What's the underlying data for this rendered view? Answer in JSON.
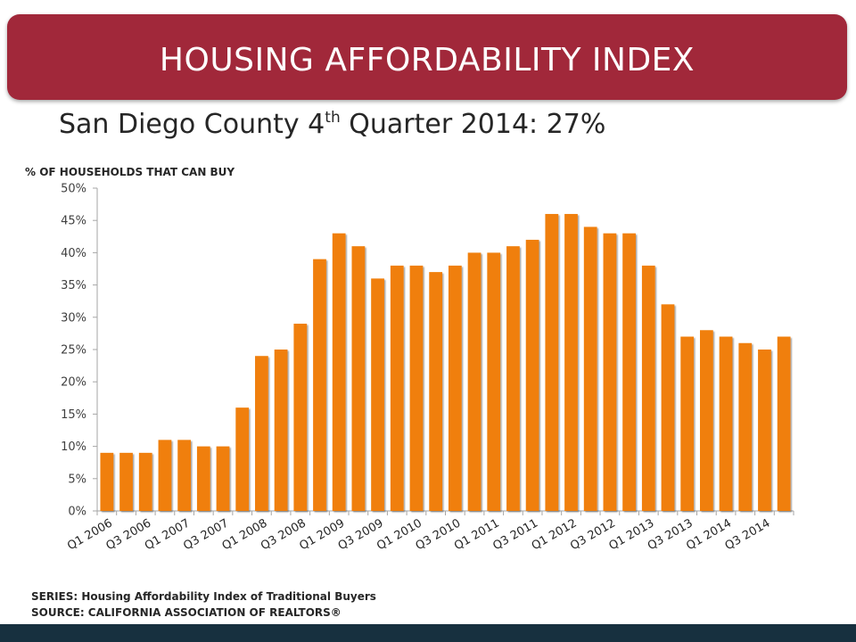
{
  "header": {
    "title": "HOUSING AFFORDABILITY INDEX"
  },
  "subtitle": {
    "prefix": "San Diego County 4",
    "superscript": "th",
    "suffix": " Quarter 2014: 27%"
  },
  "chart_data": {
    "type": "bar",
    "ylabel": "% OF HOUSEHOLDS THAT CAN BUY",
    "ylim": [
      0,
      50
    ],
    "y_ticks": [
      "0%",
      "5%",
      "10%",
      "15%",
      "20%",
      "25%",
      "30%",
      "35%",
      "40%",
      "45%",
      "50%"
    ],
    "y_tick_values": [
      0,
      5,
      10,
      15,
      20,
      25,
      30,
      35,
      40,
      45,
      50
    ],
    "x_tick_labels": [
      "Q1 2006",
      "Q3 2006",
      "Q1 2007",
      "Q3 2007",
      "Q1 2008",
      "Q3 2008",
      "Q1 2009",
      "Q3 2009",
      "Q1 2010",
      "Q3 2010",
      "Q1 2011",
      "Q3 2011",
      "Q1 2012",
      "Q3 2012",
      "Q1 2013",
      "Q3 2013",
      "Q1 2014",
      "Q3 2014"
    ],
    "categories": [
      "Q1 2006",
      "Q2 2006",
      "Q3 2006",
      "Q4 2006",
      "Q1 2007",
      "Q2 2007",
      "Q3 2007",
      "Q4 2007",
      "Q1 2008",
      "Q2 2008",
      "Q3 2008",
      "Q4 2008",
      "Q1 2009",
      "Q2 2009",
      "Q3 2009",
      "Q4 2009",
      "Q1 2010",
      "Q2 2010",
      "Q3 2010",
      "Q4 2010",
      "Q1 2011",
      "Q2 2011",
      "Q3 2011",
      "Q4 2011",
      "Q1 2012",
      "Q2 2012",
      "Q3 2012",
      "Q4 2012",
      "Q1 2013",
      "Q2 2013",
      "Q3 2013",
      "Q4 2013",
      "Q1 2014",
      "Q2 2014",
      "Q3 2014",
      "Q4 2014"
    ],
    "values": [
      9,
      9,
      9,
      11,
      11,
      10,
      10,
      16,
      24,
      25,
      29,
      39,
      43,
      41,
      36,
      38,
      38,
      37,
      38,
      40,
      40,
      41,
      42,
      46,
      46,
      44,
      43,
      43,
      38,
      32,
      27,
      28,
      27,
      26,
      25,
      27
    ],
    "bar_color": "#f07f09",
    "grid": false,
    "legend": "none"
  },
  "footer": {
    "series": "SERIES: Housing Affordability Index of Traditional Buyers",
    "source": "SOURCE:  CALIFORNIA ASSOCIATION OF REALTORS®"
  },
  "colors": {
    "banner": "#a1283a",
    "bottom_bar": "#17303f",
    "bars": "#f07f09"
  }
}
